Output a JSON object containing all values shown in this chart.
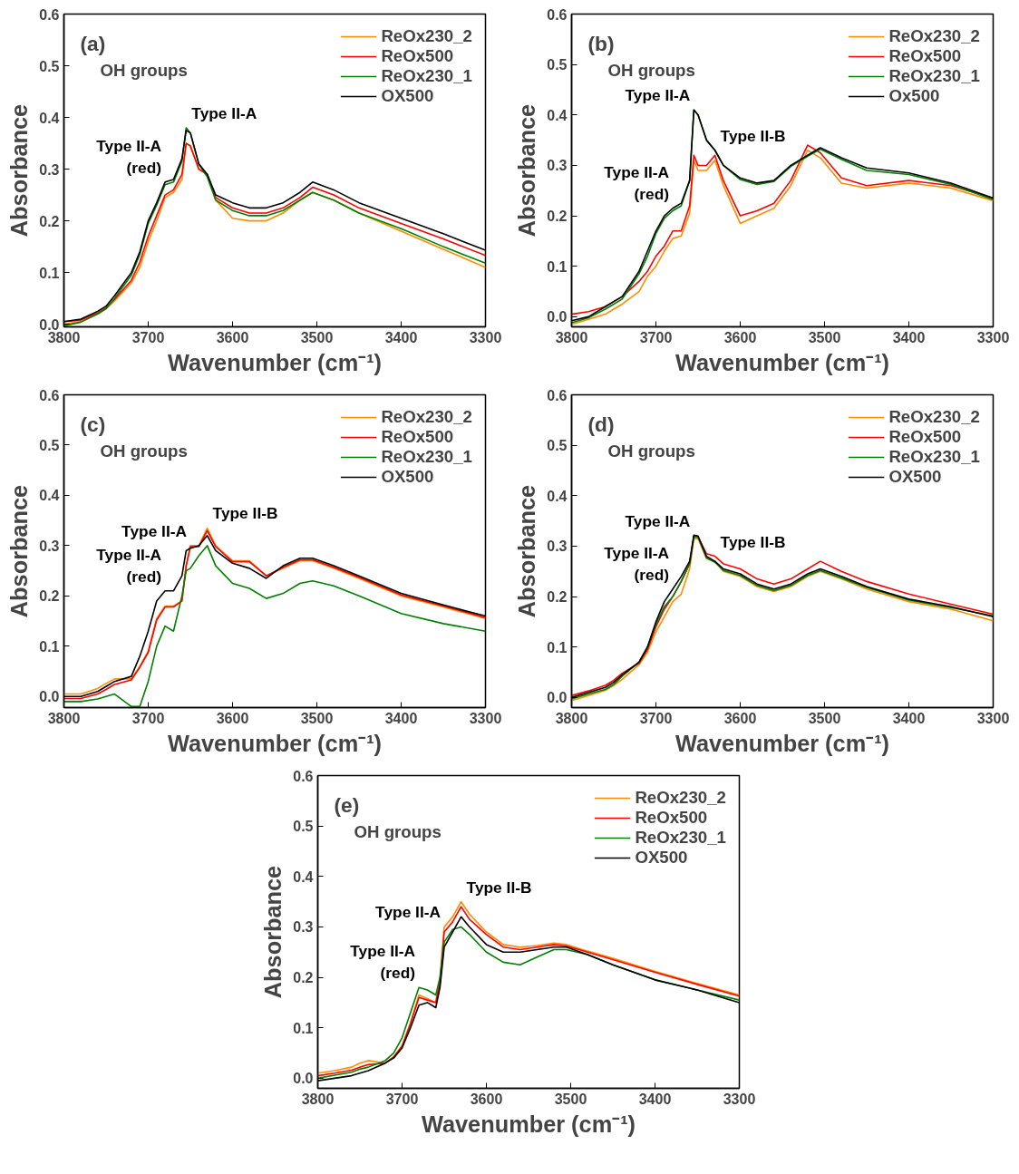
{
  "chart_data": [
    {
      "type": "line",
      "title": "(a)",
      "xlabel": "Wavenumber (cm⁻¹)",
      "ylabel": "Absorbance",
      "legend": "top right",
      "grid": false,
      "x": [
        3800,
        3780,
        3760,
        3750,
        3740,
        3720,
        3710,
        3700,
        3690,
        3680,
        3670,
        3660,
        3655,
        3650,
        3640,
        3630,
        3620,
        3600,
        3580,
        3560,
        3540,
        3520,
        3505,
        3480,
        3450,
        3400,
        3350,
        3300
      ],
      "xlim": [
        3800,
        3300
      ],
      "xticks": [
        3800,
        3700,
        3600,
        3500,
        3400,
        3300
      ],
      "ylim": [
        -0.005,
        0.6
      ],
      "yticks": [
        {
          "value": 0,
          "label": "0.0"
        },
        {
          "value": 0.1,
          "label": "0.1"
        },
        {
          "value": 0.2,
          "label": "0.2"
        },
        {
          "value": 0.3,
          "label": "0.3"
        },
        {
          "value": 0.4,
          "label": "0.4"
        },
        {
          "value": 0.5,
          "label": "0.5"
        },
        {
          "value": 0.6,
          "label": "0.6"
        }
      ],
      "annotations": [
        "OH groups",
        {
          "text": "Type II-A\n(red)",
          "x": 3680,
          "y": 0.275
        },
        {
          "text": "Type II-A",
          "x": 3655,
          "y": 0.38
        }
      ],
      "series": [
        {
          "name": "ReOx230_2",
          "color": "#ff8c00",
          "values": [
            0.0,
            0.005,
            0.02,
            0.03,
            0.045,
            0.08,
            0.11,
            0.16,
            0.2,
            0.245,
            0.255,
            0.28,
            0.35,
            0.345,
            0.3,
            0.29,
            0.24,
            0.205,
            0.2,
            0.2,
            0.215,
            0.24,
            0.255,
            0.24,
            0.215,
            0.18,
            0.145,
            0.11
          ]
        },
        {
          "name": "ReOx500",
          "color": "#ff0000",
          "values": [
            0.005,
            0.008,
            0.022,
            0.032,
            0.048,
            0.085,
            0.12,
            0.17,
            0.21,
            0.25,
            0.26,
            0.29,
            0.35,
            0.345,
            0.3,
            0.29,
            0.245,
            0.225,
            0.215,
            0.215,
            0.225,
            0.245,
            0.265,
            0.25,
            0.225,
            0.195,
            0.165,
            0.133
          ]
        },
        {
          "name": "ReOx230_1",
          "color": "#008000",
          "values": [
            -0.003,
            0.004,
            0.02,
            0.03,
            0.05,
            0.095,
            0.135,
            0.195,
            0.23,
            0.27,
            0.275,
            0.315,
            0.38,
            0.37,
            0.31,
            0.285,
            0.24,
            0.22,
            0.21,
            0.21,
            0.22,
            0.24,
            0.255,
            0.24,
            0.215,
            0.185,
            0.15,
            0.118
          ]
        },
        {
          "name": "OX500",
          "color": "#000000",
          "values": [
            0.005,
            0.01,
            0.025,
            0.035,
            0.055,
            0.1,
            0.14,
            0.2,
            0.235,
            0.275,
            0.28,
            0.32,
            0.375,
            0.37,
            0.31,
            0.29,
            0.25,
            0.235,
            0.225,
            0.225,
            0.235,
            0.255,
            0.275,
            0.26,
            0.235,
            0.205,
            0.175,
            0.143
          ]
        }
      ]
    },
    {
      "type": "line",
      "title": "(b)",
      "xlabel": "Wavenumber (cm⁻¹)",
      "ylabel": "Absorbance",
      "legend": "top right",
      "grid": false,
      "x": [
        3800,
        3780,
        3760,
        3750,
        3740,
        3720,
        3710,
        3700,
        3690,
        3680,
        3670,
        3660,
        3655,
        3650,
        3640,
        3630,
        3620,
        3600,
        3580,
        3560,
        3540,
        3520,
        3505,
        3480,
        3450,
        3400,
        3350,
        3300
      ],
      "xlim": [
        3800,
        3300
      ],
      "xticks": [
        3800,
        3700,
        3600,
        3500,
        3400,
        3300
      ],
      "ylim": [
        -0.02,
        0.6
      ],
      "yticks": [
        {
          "value": 0,
          "label": "0.0"
        },
        {
          "value": 0.1,
          "label": "0.1"
        },
        {
          "value": 0.2,
          "label": "0.2"
        },
        {
          "value": 0.3,
          "label": "0.3"
        },
        {
          "value": 0.4,
          "label": "0.4"
        },
        {
          "value": 0.5,
          "label": "0.5"
        },
        {
          "value": 0.6,
          "label": "0.6"
        }
      ],
      "annotations": [
        "OH groups",
        {
          "text": "Type II-A\n(red)",
          "x": 3680,
          "y": 0.215
        },
        {
          "text": "Type II-A",
          "x": 3655,
          "y": 0.41
        },
        {
          "text": "Type II-B",
          "x": 3630,
          "y": 0.33
        }
      ],
      "series": [
        {
          "name": "ReOx230_2",
          "color": "#ff8c00",
          "values": [
            -0.015,
            -0.005,
            0.005,
            0.015,
            0.025,
            0.05,
            0.08,
            0.1,
            0.13,
            0.155,
            0.16,
            0.205,
            0.31,
            0.29,
            0.29,
            0.31,
            0.26,
            0.185,
            0.2,
            0.215,
            0.26,
            0.33,
            0.315,
            0.265,
            0.255,
            0.265,
            0.255,
            0.23
          ]
        },
        {
          "name": "ReOx500",
          "color": "#ff0000",
          "values": [
            0.005,
            0.01,
            0.02,
            0.03,
            0.04,
            0.07,
            0.09,
            0.12,
            0.14,
            0.17,
            0.17,
            0.22,
            0.32,
            0.3,
            0.3,
            0.32,
            0.27,
            0.2,
            0.21,
            0.225,
            0.27,
            0.34,
            0.325,
            0.275,
            0.26,
            0.27,
            0.26,
            0.235
          ]
        },
        {
          "name": "ReOx230_1",
          "color": "#008000",
          "values": [
            -0.012,
            -0.002,
            0.015,
            0.025,
            0.035,
            0.085,
            0.12,
            0.165,
            0.195,
            0.21,
            0.22,
            0.27,
            0.41,
            0.4,
            0.35,
            0.33,
            0.3,
            0.272,
            0.262,
            0.268,
            0.298,
            0.318,
            0.332,
            0.312,
            0.29,
            0.282,
            0.262,
            0.232
          ]
        },
        {
          "name": "Ox500",
          "color": "#000000",
          "values": [
            -0.008,
            0.0,
            0.02,
            0.03,
            0.04,
            0.09,
            0.13,
            0.17,
            0.2,
            0.215,
            0.225,
            0.27,
            0.41,
            0.4,
            0.35,
            0.33,
            0.3,
            0.275,
            0.265,
            0.27,
            0.3,
            0.32,
            0.335,
            0.315,
            0.295,
            0.285,
            0.265,
            0.235
          ]
        }
      ]
    },
    {
      "type": "line",
      "title": "(c)",
      "xlabel": "Wavenumber (cm⁻¹)",
      "ylabel": "Absorbance",
      "legend": "top right",
      "grid": false,
      "x": [
        3800,
        3780,
        3760,
        3750,
        3740,
        3720,
        3710,
        3700,
        3690,
        3680,
        3670,
        3660,
        3655,
        3650,
        3640,
        3630,
        3620,
        3600,
        3580,
        3560,
        3540,
        3520,
        3505,
        3480,
        3450,
        3400,
        3350,
        3300
      ],
      "xlim": [
        3800,
        3300
      ],
      "xticks": [
        3800,
        3700,
        3600,
        3500,
        3400,
        3300
      ],
      "ylim": [
        -0.022,
        0.6
      ],
      "yticks": [
        {
          "value": 0,
          "label": "0.0"
        },
        {
          "value": 0.1,
          "label": "0.1"
        },
        {
          "value": 0.2,
          "label": "0.2"
        },
        {
          "value": 0.3,
          "label": "0.3"
        },
        {
          "value": 0.4,
          "label": "0.4"
        },
        {
          "value": 0.5,
          "label": "0.5"
        },
        {
          "value": 0.6,
          "label": "0.6"
        }
      ],
      "annotations": [
        "OH groups",
        {
          "text": "Type II-A\n(red)",
          "x": 3680,
          "y": 0.21
        },
        {
          "text": "Type II-A",
          "x": 3650,
          "y": 0.3
        },
        {
          "text": "Type II-B",
          "x": 3630,
          "y": 0.335
        }
      ],
      "series": [
        {
          "name": "ReOx230_2",
          "color": "#ff8c00",
          "values": [
            0.005,
            0.005,
            0.016,
            0.026,
            0.035,
            0.035,
            0.06,
            0.09,
            0.155,
            0.18,
            0.18,
            0.19,
            0.26,
            0.3,
            0.3,
            0.335,
            0.3,
            0.27,
            0.27,
            0.24,
            0.255,
            0.27,
            0.27,
            0.255,
            0.235,
            0.2,
            0.178,
            0.155
          ]
        },
        {
          "name": "ReOx500",
          "color": "#ff0000",
          "values": [
            -0.004,
            -0.004,
            0.005,
            0.014,
            0.024,
            0.033,
            0.058,
            0.088,
            0.152,
            0.178,
            0.178,
            0.19,
            0.26,
            0.298,
            0.298,
            0.33,
            0.298,
            0.268,
            0.268,
            0.24,
            0.257,
            0.272,
            0.272,
            0.257,
            0.237,
            0.202,
            0.18,
            0.157
          ]
        },
        {
          "name": "ReOx230_1",
          "color": "#008000",
          "values": [
            -0.01,
            -0.01,
            -0.005,
            0.0,
            0.005,
            -0.02,
            -0.02,
            0.03,
            0.1,
            0.14,
            0.13,
            0.2,
            0.25,
            0.255,
            0.28,
            0.3,
            0.26,
            0.225,
            0.215,
            0.195,
            0.205,
            0.225,
            0.23,
            0.22,
            0.2,
            0.165,
            0.145,
            0.13
          ]
        },
        {
          "name": "OX500",
          "color": "#000000",
          "values": [
            0.0,
            0.0,
            0.01,
            0.02,
            0.03,
            0.04,
            0.08,
            0.13,
            0.19,
            0.21,
            0.21,
            0.24,
            0.29,
            0.295,
            0.3,
            0.32,
            0.29,
            0.265,
            0.255,
            0.235,
            0.26,
            0.275,
            0.275,
            0.26,
            0.24,
            0.205,
            0.182,
            0.16
          ]
        }
      ]
    },
    {
      "type": "line",
      "title": "(d)",
      "xlabel": "Wavenumber (cm⁻¹)",
      "ylabel": "Absorbance",
      "legend": "top right",
      "grid": false,
      "x": [
        3800,
        3780,
        3760,
        3750,
        3740,
        3720,
        3710,
        3700,
        3690,
        3680,
        3670,
        3660,
        3655,
        3650,
        3640,
        3630,
        3620,
        3600,
        3580,
        3560,
        3540,
        3520,
        3505,
        3480,
        3450,
        3400,
        3350,
        3300
      ],
      "xlim": [
        3800,
        3300
      ],
      "xticks": [
        3800,
        3700,
        3600,
        3500,
        3400,
        3300
      ],
      "ylim": [
        -0.02,
        0.6
      ],
      "yticks": [
        {
          "value": 0,
          "label": "0.0"
        },
        {
          "value": 0.1,
          "label": "0.1"
        },
        {
          "value": 0.2,
          "label": "0.2"
        },
        {
          "value": 0.3,
          "label": "0.3"
        },
        {
          "value": 0.4,
          "label": "0.4"
        },
        {
          "value": 0.5,
          "label": "0.5"
        },
        {
          "value": 0.6,
          "label": "0.6"
        }
      ],
      "annotations": [
        "OH groups",
        {
          "text": "Type II-A\n(red)",
          "x": 3680,
          "y": 0.215
        },
        {
          "text": "Type II-A",
          "x": 3655,
          "y": 0.32
        },
        {
          "text": "Type II-B",
          "x": 3630,
          "y": 0.28
        }
      ],
      "series": [
        {
          "name": "ReOx230_2",
          "color": "#ff8c00",
          "values": [
            -0.006,
            0.004,
            0.014,
            0.024,
            0.036,
            0.065,
            0.09,
            0.13,
            0.16,
            0.19,
            0.205,
            0.255,
            0.315,
            0.315,
            0.275,
            0.27,
            0.25,
            0.24,
            0.22,
            0.21,
            0.22,
            0.24,
            0.25,
            0.235,
            0.215,
            0.19,
            0.175,
            0.152
          ]
        },
        {
          "name": "ReOx500",
          "color": "#ff0000",
          "values": [
            0.004,
            0.013,
            0.024,
            0.034,
            0.048,
            0.068,
            0.095,
            0.14,
            0.175,
            0.2,
            0.23,
            0.265,
            0.32,
            0.318,
            0.285,
            0.28,
            0.265,
            0.255,
            0.235,
            0.225,
            0.235,
            0.255,
            0.27,
            0.25,
            0.23,
            0.205,
            0.185,
            0.165
          ]
        },
        {
          "name": "ReOx230_1",
          "color": "#008000",
          "values": [
            -0.003,
            0.007,
            0.016,
            0.026,
            0.042,
            0.07,
            0.1,
            0.145,
            0.18,
            0.2,
            0.23,
            0.265,
            0.318,
            0.318,
            0.277,
            0.268,
            0.252,
            0.242,
            0.222,
            0.212,
            0.222,
            0.242,
            0.252,
            0.237,
            0.218,
            0.193,
            0.178,
            0.162
          ]
        },
        {
          "name": "OX500",
          "color": "#000000",
          "values": [
            0.0,
            0.01,
            0.02,
            0.03,
            0.045,
            0.07,
            0.1,
            0.15,
            0.19,
            0.215,
            0.24,
            0.27,
            0.322,
            0.32,
            0.28,
            0.27,
            0.255,
            0.245,
            0.225,
            0.215,
            0.225,
            0.245,
            0.255,
            0.24,
            0.22,
            0.195,
            0.18,
            0.16
          ]
        }
      ]
    },
    {
      "type": "line",
      "title": "(e)",
      "xlabel": "Wavenumber (cm⁻¹)",
      "ylabel": "Absorbance",
      "legend": "top right",
      "grid": false,
      "x": [
        3800,
        3780,
        3760,
        3750,
        3740,
        3720,
        3710,
        3700,
        3690,
        3680,
        3670,
        3660,
        3655,
        3650,
        3640,
        3630,
        3620,
        3600,
        3580,
        3560,
        3540,
        3520,
        3505,
        3480,
        3450,
        3400,
        3350,
        3300
      ],
      "xlim": [
        3800,
        3300
      ],
      "xticks": [
        3800,
        3700,
        3600,
        3500,
        3400,
        3300
      ],
      "ylim": [
        -0.02,
        0.6
      ],
      "yticks": [
        {
          "value": 0,
          "label": "0.0"
        },
        {
          "value": 0.1,
          "label": "0.1"
        },
        {
          "value": 0.2,
          "label": "0.2"
        },
        {
          "value": 0.3,
          "label": "0.3"
        },
        {
          "value": 0.4,
          "label": "0.4"
        },
        {
          "value": 0.5,
          "label": "0.5"
        },
        {
          "value": 0.6,
          "label": "0.6"
        }
      ],
      "annotations": [
        "OH groups",
        {
          "text": "Type II-A\n(red)",
          "x": 3680,
          "y": 0.18
        },
        {
          "text": "Type II-A",
          "x": 3650,
          "y": 0.3
        },
        {
          "text": "Type II-B",
          "x": 3630,
          "y": 0.35
        }
      ],
      "series": [
        {
          "name": "ReOx230_2",
          "color": "#ff8c00",
          "values": [
            0.01,
            0.015,
            0.022,
            0.03,
            0.035,
            0.03,
            0.042,
            0.065,
            0.11,
            0.165,
            0.158,
            0.15,
            0.2,
            0.3,
            0.32,
            0.35,
            0.325,
            0.29,
            0.265,
            0.26,
            0.263,
            0.268,
            0.265,
            0.252,
            0.238,
            0.212,
            0.188,
            0.165
          ]
        },
        {
          "name": "ReOx500",
          "color": "#ff0000",
          "values": [
            0.005,
            0.01,
            0.016,
            0.022,
            0.027,
            0.03,
            0.042,
            0.063,
            0.108,
            0.16,
            0.155,
            0.15,
            0.19,
            0.29,
            0.31,
            0.34,
            0.315,
            0.285,
            0.26,
            0.255,
            0.26,
            0.265,
            0.262,
            0.25,
            0.235,
            0.21,
            0.186,
            0.163
          ]
        },
        {
          "name": "ReOx230_1",
          "color": "#008000",
          "values": [
            0.0,
            0.006,
            0.012,
            0.018,
            0.022,
            0.035,
            0.05,
            0.08,
            0.13,
            0.18,
            0.175,
            0.165,
            0.2,
            0.27,
            0.295,
            0.3,
            0.285,
            0.25,
            0.23,
            0.225,
            0.24,
            0.255,
            0.255,
            0.245,
            0.225,
            0.195,
            0.175,
            0.155
          ]
        },
        {
          "name": "OX500",
          "color": "#000000",
          "values": [
            -0.005,
            0.0,
            0.005,
            0.01,
            0.015,
            0.03,
            0.04,
            0.06,
            0.1,
            0.145,
            0.15,
            0.14,
            0.18,
            0.26,
            0.29,
            0.32,
            0.3,
            0.265,
            0.25,
            0.25,
            0.255,
            0.26,
            0.26,
            0.245,
            0.225,
            0.195,
            0.175,
            0.15
          ]
        }
      ]
    }
  ]
}
